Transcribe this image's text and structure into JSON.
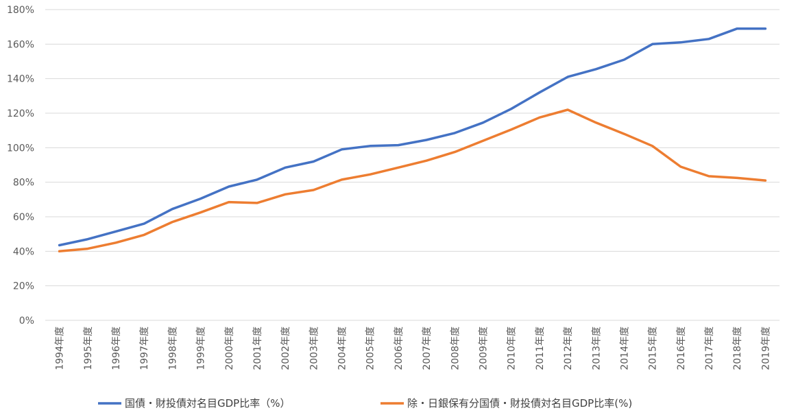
{
  "chart_data": {
    "type": "line",
    "categories": [
      "1994年度",
      "1995年度",
      "1996年度",
      "1997年度",
      "1998年度",
      "1999年度",
      "2000年度",
      "2001年度",
      "2002年度",
      "2003年度",
      "2004年度",
      "2005年度",
      "2006年度",
      "2007年度",
      "2008年度",
      "2009年度",
      "2010年度",
      "2011年度",
      "2012年度",
      "2013年度",
      "2014年度",
      "2015年度",
      "2016年度",
      "2017年度",
      "2018年度",
      "2019年度"
    ],
    "series": [
      {
        "name": "国債・財投債対名目GDP比率（%）",
        "color": "#4472c4",
        "values": [
          43.5,
          47,
          51.5,
          56,
          64.5,
          70.5,
          77.5,
          81.5,
          88.5,
          92,
          99,
          101,
          101.5,
          104.5,
          108.5,
          114.5,
          122.5,
          132,
          141,
          145.5,
          151,
          160,
          161,
          163,
          169,
          169
        ]
      },
      {
        "name": "除・日銀保有分国債・財投債対名目GDP比率(%)",
        "color": "#ed7d31",
        "values": [
          40,
          41.5,
          45,
          49.5,
          57,
          62.5,
          68.5,
          68,
          73,
          75.5,
          81.5,
          84.5,
          88.5,
          92.5,
          97.5,
          104,
          110.5,
          117.5,
          122,
          114.5,
          108,
          101,
          89,
          83.5,
          82.5,
          81
        ]
      }
    ],
    "y_ticks": [
      "0%",
      "20%",
      "40%",
      "60%",
      "80%",
      "100%",
      "120%",
      "140%",
      "160%",
      "180%"
    ],
    "ylim": [
      0,
      180
    ],
    "grid": true,
    "legend_position": "bottom"
  }
}
